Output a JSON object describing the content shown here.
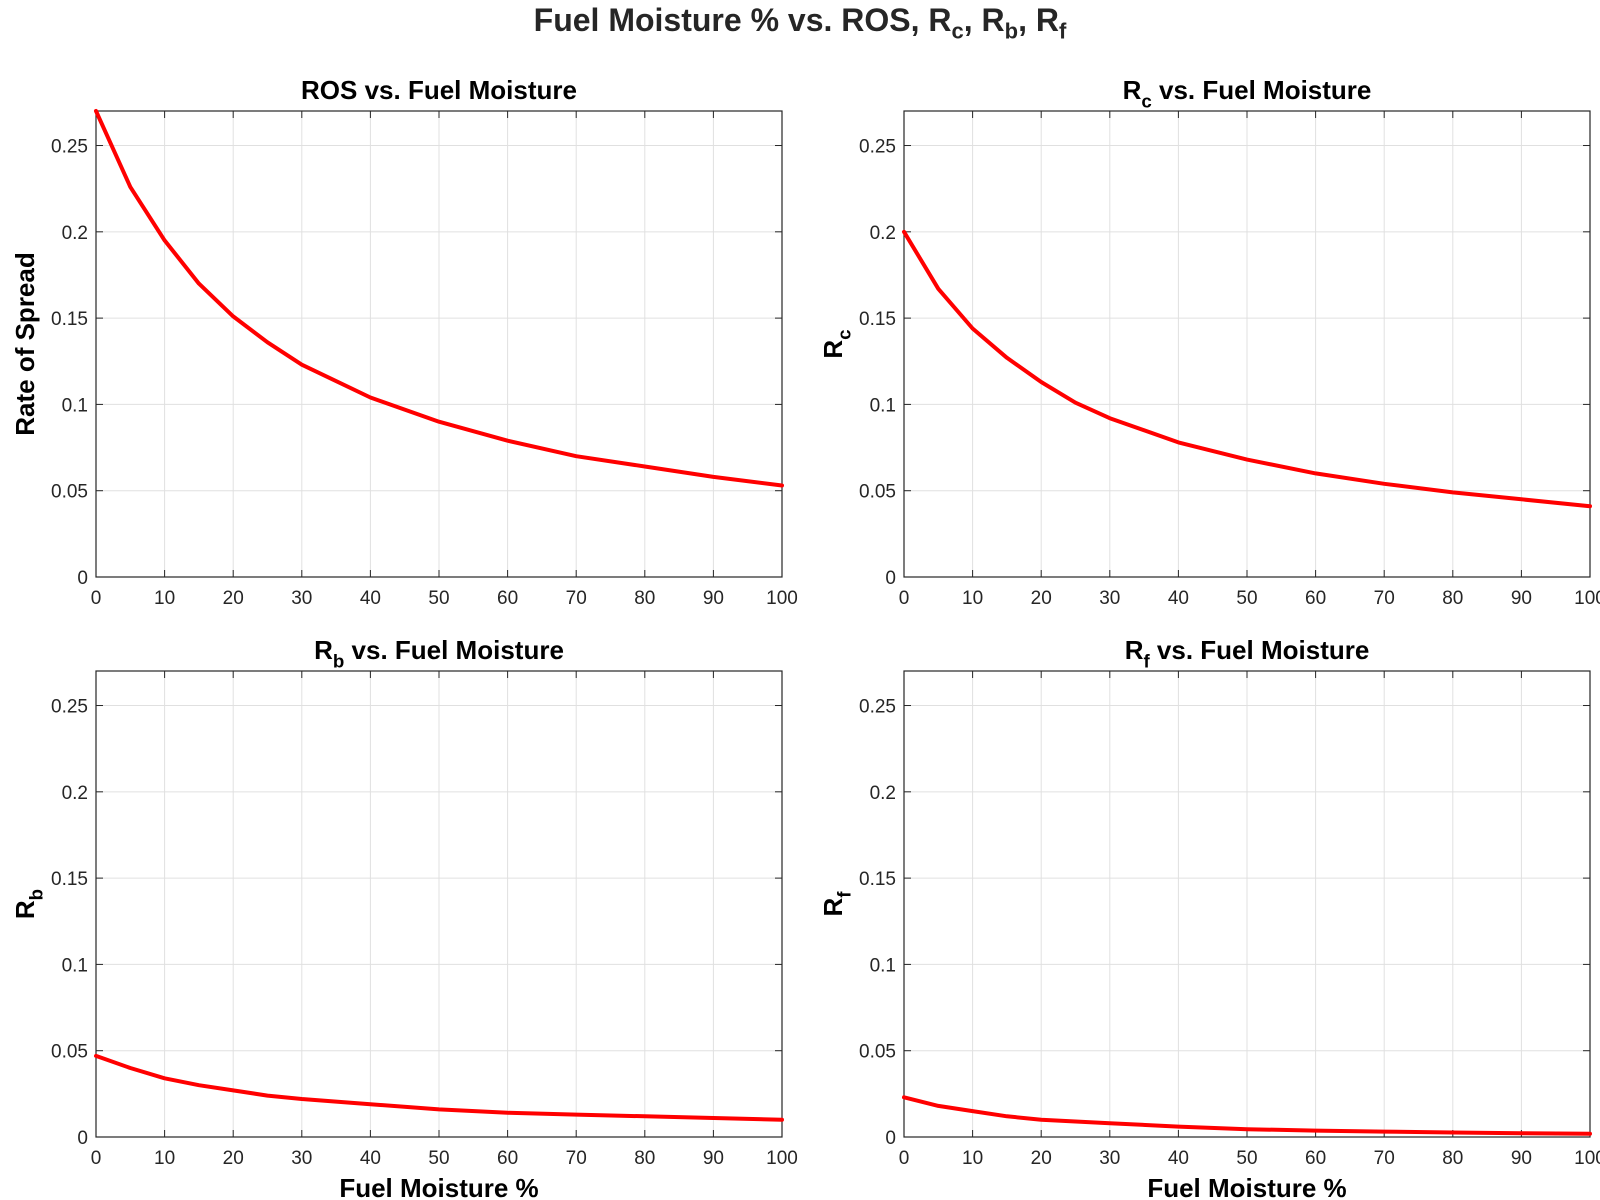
{
  "figure": {
    "suptitle": "Fuel Moisture % vs. ROS, R_c, R_b, R_f",
    "suptitle_parts": [
      {
        "t": "Fuel Moisture % vs. ROS, R",
        "s": ""
      },
      {
        "t": "",
        "s": "c"
      },
      {
        "t": ", R",
        "s": ""
      },
      {
        "t": "",
        "s": "b"
      },
      {
        "t": ", R",
        "s": ""
      },
      {
        "t": "",
        "s": "f"
      }
    ]
  },
  "chart_data": [
    {
      "type": "line",
      "title": "ROS vs. Fuel Moisture",
      "title_parts": [
        {
          "t": "ROS vs. Fuel Moisture",
          "s": ""
        }
      ],
      "xlabel": "",
      "ylabel": "Rate of Spread",
      "ylabel_parts": [
        {
          "t": "Rate of Spread",
          "s": ""
        }
      ],
      "xlim": [
        0,
        100
      ],
      "ylim": [
        0,
        0.27
      ],
      "xticks": [
        "0",
        "10",
        "20",
        "30",
        "40",
        "50",
        "60",
        "70",
        "80",
        "90",
        "100"
      ],
      "yticks": [
        "0",
        "0.05",
        "0.1",
        "0.15",
        "0.2",
        "0.25"
      ],
      "grid": true,
      "color": "#ff0000",
      "x": [
        0,
        5,
        10,
        15,
        20,
        25,
        30,
        40,
        50,
        60,
        70,
        80,
        90,
        100
      ],
      "y": [
        0.27,
        0.226,
        0.195,
        0.17,
        0.151,
        0.136,
        0.123,
        0.104,
        0.09,
        0.079,
        0.07,
        0.064,
        0.058,
        0.053
      ]
    },
    {
      "type": "line",
      "title": "R_c vs. Fuel Moisture",
      "title_parts": [
        {
          "t": "R",
          "s": ""
        },
        {
          "t": "",
          "s": "c"
        },
        {
          "t": " vs. Fuel Moisture",
          "s": ""
        }
      ],
      "xlabel": "",
      "ylabel": "R_c",
      "ylabel_parts": [
        {
          "t": "R",
          "s": ""
        },
        {
          "t": "",
          "s": "c"
        }
      ],
      "xlim": [
        0,
        100
      ],
      "ylim": [
        0,
        0.27
      ],
      "xticks": [
        "0",
        "10",
        "20",
        "30",
        "40",
        "50",
        "60",
        "70",
        "80",
        "90",
        "100"
      ],
      "yticks": [
        "0",
        "0.05",
        "0.1",
        "0.15",
        "0.2",
        "0.25"
      ],
      "grid": true,
      "color": "#ff0000",
      "x": [
        0,
        5,
        10,
        15,
        20,
        25,
        30,
        40,
        50,
        60,
        70,
        80,
        90,
        100
      ],
      "y": [
        0.2,
        0.167,
        0.144,
        0.127,
        0.113,
        0.101,
        0.092,
        0.078,
        0.068,
        0.06,
        0.054,
        0.049,
        0.045,
        0.041
      ]
    },
    {
      "type": "line",
      "title": "R_b vs. Fuel Moisture",
      "title_parts": [
        {
          "t": "R",
          "s": ""
        },
        {
          "t": "",
          "s": "b"
        },
        {
          "t": " vs. Fuel Moisture",
          "s": ""
        }
      ],
      "xlabel": "Fuel Moisture %",
      "ylabel": "R_b",
      "ylabel_parts": [
        {
          "t": "R",
          "s": ""
        },
        {
          "t": "",
          "s": "b"
        }
      ],
      "xlim": [
        0,
        100
      ],
      "ylim": [
        0,
        0.27
      ],
      "xticks": [
        "0",
        "10",
        "20",
        "30",
        "40",
        "50",
        "60",
        "70",
        "80",
        "90",
        "100"
      ],
      "yticks": [
        "0",
        "0.05",
        "0.1",
        "0.15",
        "0.2",
        "0.25"
      ],
      "grid": true,
      "color": "#ff0000",
      "x": [
        0,
        5,
        10,
        15,
        20,
        25,
        30,
        40,
        50,
        60,
        70,
        80,
        90,
        100
      ],
      "y": [
        0.047,
        0.04,
        0.034,
        0.03,
        0.027,
        0.024,
        0.022,
        0.019,
        0.016,
        0.014,
        0.013,
        0.012,
        0.011,
        0.01
      ]
    },
    {
      "type": "line",
      "title": "R_f vs. Fuel Moisture",
      "title_parts": [
        {
          "t": "R",
          "s": ""
        },
        {
          "t": "",
          "s": "f"
        },
        {
          "t": " vs. Fuel Moisture",
          "s": ""
        }
      ],
      "xlabel": "Fuel Moisture %",
      "ylabel": "R_f",
      "ylabel_parts": [
        {
          "t": "R",
          "s": ""
        },
        {
          "t": "",
          "s": "f"
        }
      ],
      "xlim": [
        0,
        100
      ],
      "ylim": [
        0,
        0.27
      ],
      "xticks": [
        "0",
        "10",
        "20",
        "30",
        "40",
        "50",
        "60",
        "70",
        "80",
        "90",
        "100"
      ],
      "yticks": [
        "0",
        "0.05",
        "0.1",
        "0.15",
        "0.2",
        "0.25"
      ],
      "grid": true,
      "color": "#ff0000",
      "x": [
        0,
        5,
        10,
        15,
        20,
        25,
        30,
        40,
        50,
        60,
        70,
        80,
        90,
        100
      ],
      "y": [
        0.023,
        0.018,
        0.015,
        0.012,
        0.01,
        0.009,
        0.008,
        0.006,
        0.0045,
        0.0037,
        0.0031,
        0.0026,
        0.0022,
        0.0019
      ]
    }
  ]
}
